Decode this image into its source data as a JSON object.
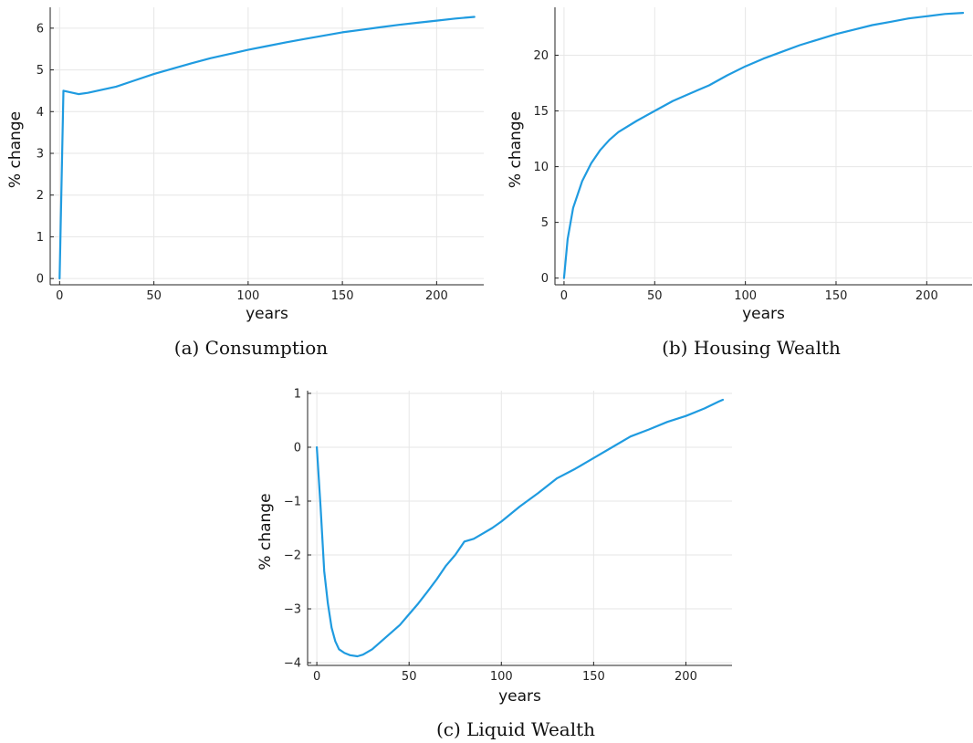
{
  "chart_data": [
    {
      "type": "line",
      "caption": "(a) Consumption",
      "xlabel": "years",
      "ylabel": "% change",
      "xlim": [
        -5,
        225
      ],
      "ylim": [
        -0.15,
        6.5
      ],
      "xticks": [
        "0",
        "50",
        "100",
        "150",
        "200"
      ],
      "yticks": [
        "0",
        "1",
        "2",
        "3",
        "4",
        "5",
        "6"
      ],
      "grid": true,
      "series": [
        {
          "color": "#1f9be0",
          "x": [
            0,
            2,
            5,
            10,
            15,
            20,
            30,
            40,
            50,
            60,
            70,
            80,
            90,
            100,
            110,
            120,
            130,
            140,
            150,
            160,
            170,
            180,
            190,
            200,
            210,
            220
          ],
          "y": [
            0,
            4.5,
            4.47,
            4.42,
            4.45,
            4.5,
            4.6,
            4.75,
            4.9,
            5.03,
            5.16,
            5.28,
            5.38,
            5.48,
            5.57,
            5.66,
            5.74,
            5.82,
            5.9,
            5.96,
            6.02,
            6.08,
            6.13,
            6.18,
            6.23,
            6.27
          ]
        }
      ]
    },
    {
      "type": "line",
      "caption": "(b) Housing Wealth",
      "xlabel": "years",
      "ylabel": "% change",
      "xlim": [
        -5,
        225
      ],
      "ylim": [
        -0.6,
        24.3
      ],
      "xticks": [
        "0",
        "50",
        "100",
        "150",
        "200"
      ],
      "yticks": [
        "0",
        "5",
        "10",
        "15",
        "20"
      ],
      "grid": true,
      "series": [
        {
          "color": "#1f9be0",
          "x": [
            0,
            2,
            5,
            10,
            15,
            20,
            25,
            30,
            40,
            50,
            60,
            70,
            80,
            90,
            100,
            110,
            120,
            130,
            140,
            150,
            160,
            170,
            180,
            190,
            200,
            210,
            220
          ],
          "y": [
            0,
            3.5,
            6.3,
            8.7,
            10.3,
            11.5,
            12.4,
            13.1,
            14.1,
            15.0,
            15.9,
            16.6,
            17.3,
            18.2,
            19.0,
            19.7,
            20.3,
            20.9,
            21.4,
            21.9,
            22.3,
            22.7,
            23.0,
            23.3,
            23.5,
            23.7,
            23.8
          ]
        }
      ]
    },
    {
      "type": "line",
      "caption": "(c) Liquid Wealth",
      "xlabel": "years",
      "ylabel": "% change",
      "xlim": [
        -5,
        225
      ],
      "ylim": [
        -4.05,
        1.05
      ],
      "xticks": [
        "0",
        "50",
        "100",
        "150",
        "200"
      ],
      "yticks": [
        "1",
        "0",
        "−1",
        "−2",
        "−3",
        "−4"
      ],
      "grid": true,
      "series": [
        {
          "color": "#1f9be0",
          "x": [
            0,
            2,
            4,
            6,
            8,
            10,
            12,
            15,
            18,
            22,
            25,
            30,
            35,
            40,
            45,
            50,
            55,
            60,
            65,
            70,
            75,
            80,
            85,
            90,
            95,
            100,
            110,
            120,
            130,
            140,
            150,
            160,
            170,
            180,
            190,
            200,
            210,
            218,
            220
          ],
          "y": [
            0,
            -1.1,
            -2.3,
            -2.9,
            -3.35,
            -3.6,
            -3.75,
            -3.82,
            -3.86,
            -3.88,
            -3.85,
            -3.75,
            -3.6,
            -3.45,
            -3.3,
            -3.1,
            -2.9,
            -2.68,
            -2.45,
            -2.2,
            -2.0,
            -1.75,
            -1.7,
            -1.6,
            -1.5,
            -1.38,
            -1.1,
            -0.85,
            -0.58,
            -0.4,
            -0.2,
            0.0,
            0.2,
            0.33,
            0.47,
            0.58,
            0.72,
            0.85,
            0.88
          ]
        }
      ]
    }
  ]
}
